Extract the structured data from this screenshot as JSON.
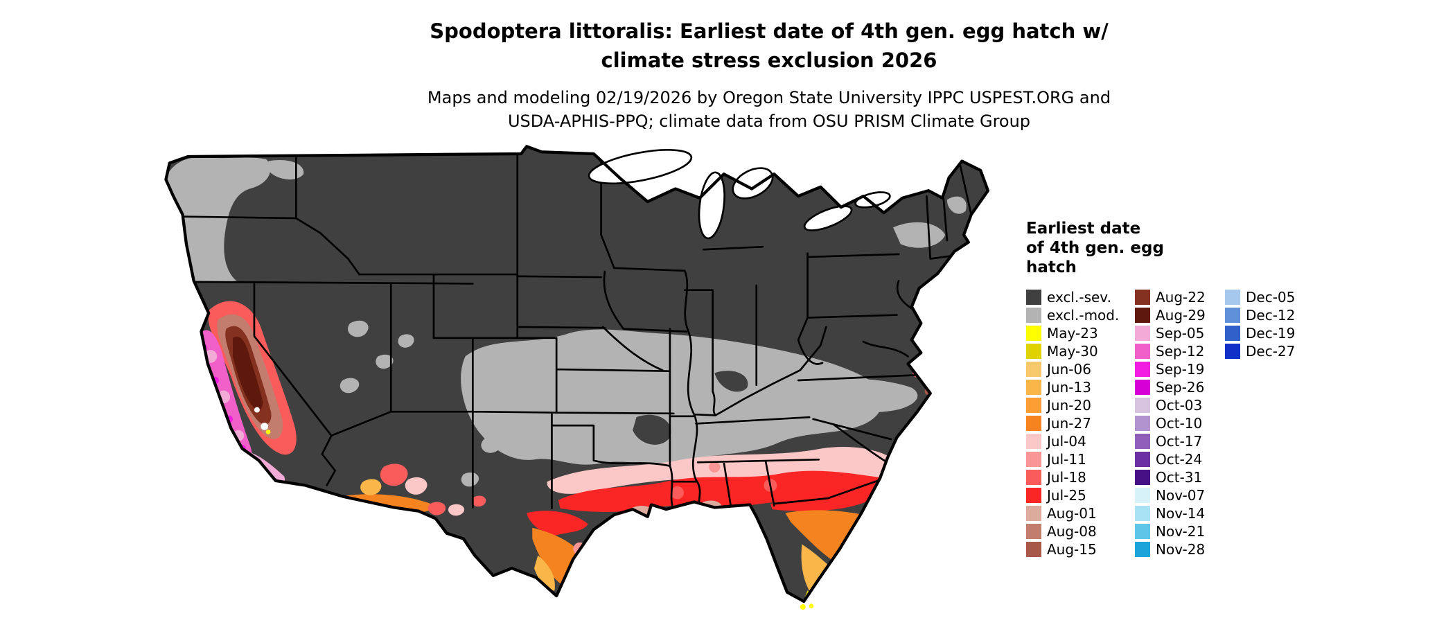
{
  "title": "Spodoptera littoralis: Earliest date of 4th gen. egg hatch w/\nclimate stress exclusion 2026",
  "subtitle": "Maps and modeling 02/19/2026 by Oregon State University IPPC USPEST.ORG and\nUSDA-APHIS-PPQ; climate data from OSU PRISM Climate Group",
  "legend": {
    "title": "Earliest date\nof 4th gen. egg\nhatch",
    "columns": [
      [
        {
          "label": "excl.-sev.",
          "color": "#404040"
        },
        {
          "label": "excl.-mod.",
          "color": "#b3b3b3"
        },
        {
          "label": "May-23",
          "color": "#ffff00"
        },
        {
          "label": "May-30",
          "color": "#e0d200"
        },
        {
          "label": "Jun-06",
          "color": "#f8c96c"
        },
        {
          "label": "Jun-13",
          "color": "#fbb64a"
        },
        {
          "label": "Jun-20",
          "color": "#fc9e33"
        },
        {
          "label": "Jun-27",
          "color": "#f5831f"
        },
        {
          "label": "Jul-04",
          "color": "#fbc7c7"
        },
        {
          "label": "Jul-11",
          "color": "#fa9696"
        },
        {
          "label": "Jul-18",
          "color": "#fa5c5c"
        },
        {
          "label": "Jul-25",
          "color": "#fa2525"
        },
        {
          "label": "Aug-01",
          "color": "#dcab9e"
        },
        {
          "label": "Aug-08",
          "color": "#c37d6f"
        },
        {
          "label": "Aug-15",
          "color": "#a85849"
        }
      ],
      [
        {
          "label": "Aug-22",
          "color": "#84311f"
        },
        {
          "label": "Aug-29",
          "color": "#5e190c"
        },
        {
          "label": "Sep-05",
          "color": "#f2aad6"
        },
        {
          "label": "Sep-12",
          "color": "#f060c8"
        },
        {
          "label": "Sep-19",
          "color": "#f21ce0"
        },
        {
          "label": "Sep-26",
          "color": "#d600d6"
        },
        {
          "label": "Oct-03",
          "color": "#d5c3e0"
        },
        {
          "label": "Oct-10",
          "color": "#b293cf"
        },
        {
          "label": "Oct-17",
          "color": "#8f5fba"
        },
        {
          "label": "Oct-24",
          "color": "#6c30a2"
        },
        {
          "label": "Oct-31",
          "color": "#471085"
        },
        {
          "label": "Nov-07",
          "color": "#d8f2fa"
        },
        {
          "label": "Nov-14",
          "color": "#a9e2f4"
        },
        {
          "label": "Nov-21",
          "color": "#5ec4e8"
        },
        {
          "label": "Nov-28",
          "color": "#1ba4da"
        }
      ],
      [
        {
          "label": "Dec-05",
          "color": "#a5c8ec"
        },
        {
          "label": "Dec-12",
          "color": "#6090da"
        },
        {
          "label": "Dec-19",
          "color": "#3060ca"
        },
        {
          "label": "Dec-27",
          "color": "#1030c8"
        }
      ]
    ]
  },
  "map": {
    "ocean_color": "#ffffff",
    "border_color": "#000000",
    "lake_color": "#ffffff"
  }
}
